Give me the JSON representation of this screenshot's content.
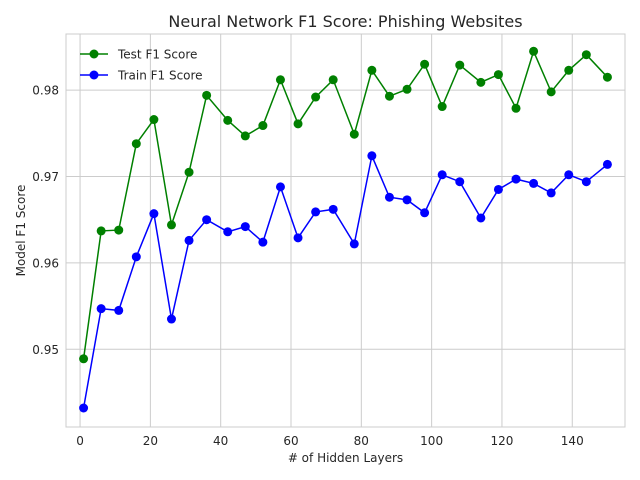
{
  "chart_data": {
    "type": "line",
    "title": "Neural Network F1 Score: Phishing Websites",
    "xlabel": "# of Hidden Layers",
    "ylabel": "Model F1 Score",
    "xlim": [
      -4,
      155
    ],
    "ylim": [
      0.941,
      0.9865
    ],
    "xticks": [
      0,
      20,
      40,
      60,
      80,
      100,
      120,
      140
    ],
    "yticks": [
      0.95,
      0.96,
      0.97,
      0.98
    ],
    "ytick_labels": [
      "0.95",
      "0.96",
      "0.97",
      "0.98"
    ],
    "grid": true,
    "legend_position": "top-left",
    "x": [
      1,
      6,
      11,
      16,
      21,
      26,
      31,
      36,
      42,
      47,
      52,
      57,
      62,
      67,
      72,
      78,
      83,
      88,
      93,
      98,
      103,
      108,
      114,
      119,
      124,
      129,
      134,
      139,
      144,
      150
    ],
    "series": [
      {
        "name": "Test F1 Score",
        "color": "#008000",
        "values": [
          0.9489,
          0.9637,
          0.9638,
          0.9738,
          0.9766,
          0.9644,
          0.9705,
          0.9794,
          0.9765,
          0.9747,
          0.9759,
          0.9812,
          0.9761,
          0.9792,
          0.9812,
          0.9749,
          0.9823,
          0.9793,
          0.9801,
          0.983,
          0.9781,
          0.9829,
          0.9809,
          0.9818,
          0.9779,
          0.9845,
          0.9798,
          0.9823,
          0.9841,
          0.9815
        ]
      },
      {
        "name": "Train F1 Score",
        "color": "#0000ff",
        "values": [
          0.9432,
          0.9547,
          0.9545,
          0.9607,
          0.9657,
          0.9535,
          0.9626,
          0.965,
          0.9636,
          0.9642,
          0.9624,
          0.9688,
          0.9629,
          0.9659,
          0.9662,
          0.9622,
          0.9724,
          0.9676,
          0.9673,
          0.9658,
          0.9702,
          0.9694,
          0.9652,
          0.9685,
          0.9697,
          0.9692,
          0.9681,
          0.9702,
          0.9694,
          0.9714
        ]
      }
    ]
  }
}
